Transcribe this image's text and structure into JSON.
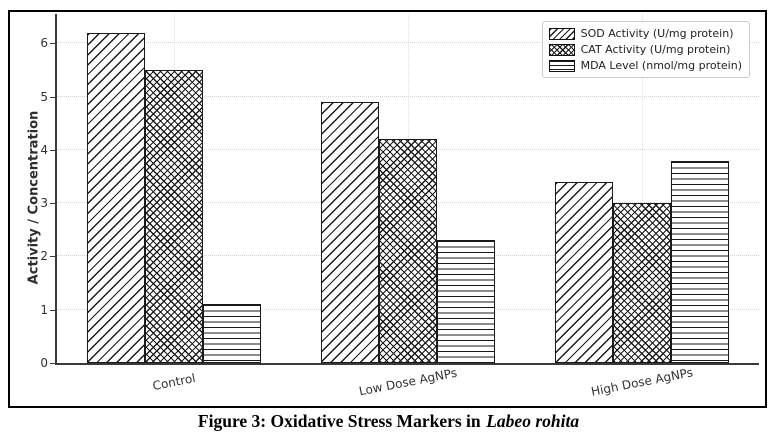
{
  "chart_data": {
    "type": "bar",
    "categories": [
      "Control",
      "Low Dose AgNPs",
      "High Dose AgNPs"
    ],
    "series": [
      {
        "name": "SOD Activity (U/mg protein)",
        "hatch": "diagonal",
        "values": [
          6.2,
          4.9,
          3.4
        ]
      },
      {
        "name": "CAT Activity (U/mg protein)",
        "hatch": "crosshatch",
        "values": [
          5.5,
          4.2,
          3.0
        ]
      },
      {
        "name": "MDA Level (nmol/mg protein)",
        "hatch": "horizontal",
        "values": [
          1.1,
          2.3,
          3.8
        ]
      }
    ],
    "ylabel": "Activity / Concentration",
    "xlabel": "",
    "yticks": [
      0,
      1,
      2,
      3,
      4,
      5,
      6
    ],
    "ylim": [
      0,
      6.55
    ],
    "grid": true,
    "legend_position": "upper-right",
    "colors": {
      "bar_fill": "#ffffff",
      "hatch": "#1a1a1a",
      "edge": "#1a1a1a",
      "grid": "#d6d6d6",
      "text": "#333333",
      "frame_border": "#000000"
    }
  },
  "caption": {
    "prefix": "Figure 3: Oxidative Stress Markers in",
    "species": "Labeo rohita"
  }
}
